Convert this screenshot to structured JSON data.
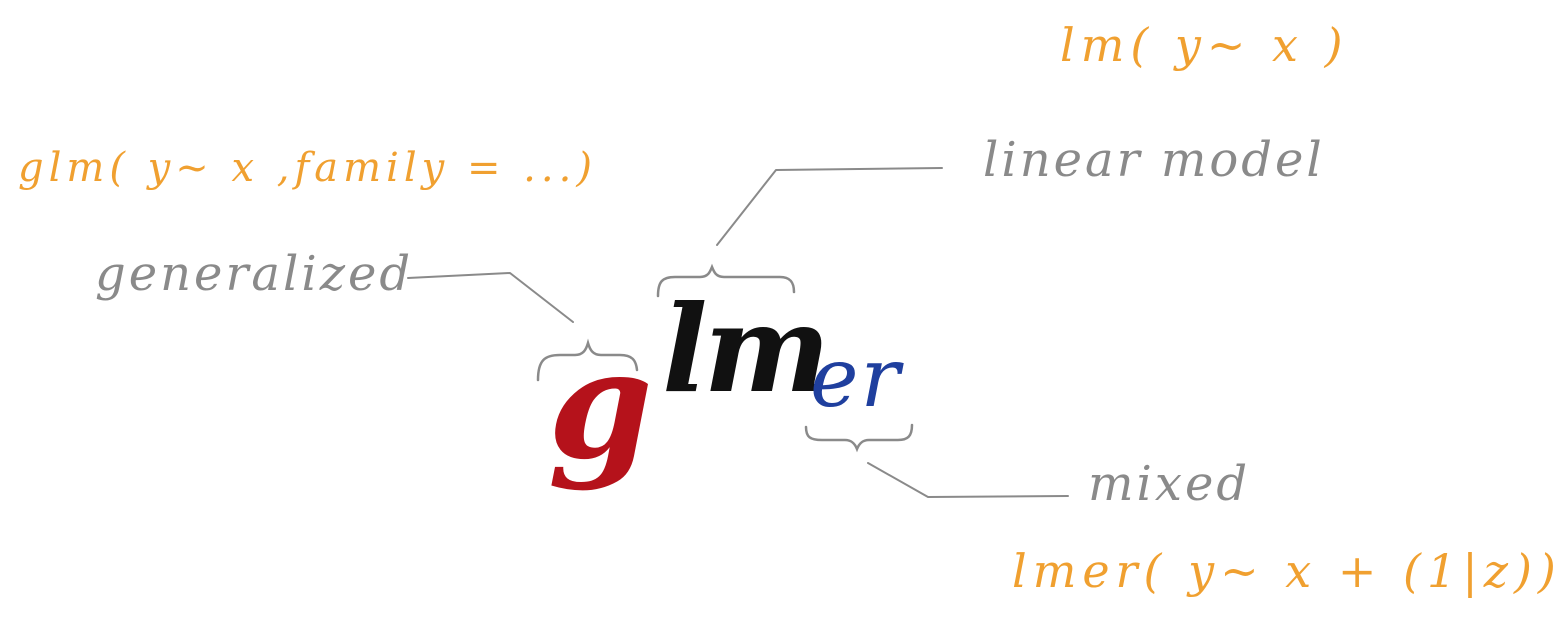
{
  "word": {
    "g": "g",
    "lm": "lm",
    "er": "er"
  },
  "labels": {
    "linear_model": "linear model",
    "generalized": "generalized",
    "mixed": "mixed"
  },
  "code": {
    "lm": "lm( y~ x )",
    "glm": "glm( y~ x ,family = ...)",
    "lmer": "lmer( y~ x + (1|z))"
  },
  "colors": {
    "g": "#b5121b",
    "lm": "#111111",
    "er": "#1f3f9e",
    "code": "#f0a030",
    "label": "#8a8a8a",
    "line": "#8a8a8a"
  }
}
